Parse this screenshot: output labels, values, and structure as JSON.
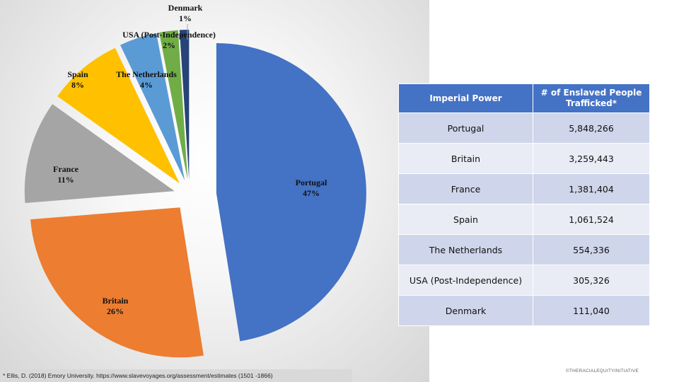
{
  "chart_data": {
    "type": "pie",
    "exploded": true,
    "slices": [
      {
        "label": "Portugal",
        "value": 47,
        "display": "47%",
        "color": "#4472c4"
      },
      {
        "label": "Britain",
        "value": 26,
        "display": "26%",
        "color": "#ed7d31"
      },
      {
        "label": "France",
        "value": 11,
        "display": "11%",
        "color": "#a5a5a5"
      },
      {
        "label": "Spain",
        "value": 8,
        "display": "8%",
        "color": "#ffc000"
      },
      {
        "label": "The Netherlands",
        "value": 4,
        "display": "4%",
        "color": "#5b9bd5"
      },
      {
        "label": "USA (Post-Independence)",
        "value": 2,
        "display": "2%",
        "color": "#70ad47"
      },
      {
        "label": "Denmark",
        "value": 1,
        "display": "1%",
        "color": "#264478"
      }
    ]
  },
  "footnote": "* Ellis, D. (2018) Emory University.  https://www.slavevoyages.org/assessment/estimates (1501 -1866)",
  "table": {
    "headers": [
      "Imperial Power",
      "# of Enslaved People Trafficked*"
    ],
    "rows": [
      [
        "Portugal",
        "5,848,266"
      ],
      [
        "Britain",
        "3,259,443"
      ],
      [
        "France",
        "1,381,404"
      ],
      [
        "Spain",
        "1,061,524"
      ],
      [
        "The Netherlands",
        "554,336"
      ],
      [
        "USA (Post-Independence)",
        "305,326"
      ],
      [
        "Denmark",
        "111,040"
      ]
    ]
  },
  "copyright": "©THERACIALEQUITYINITIATIVE"
}
